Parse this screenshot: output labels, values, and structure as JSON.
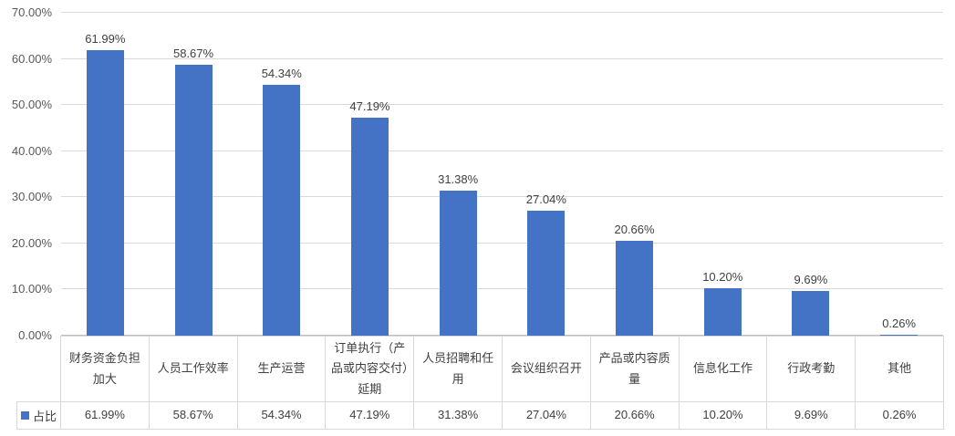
{
  "chart_data": {
    "type": "bar",
    "title": "",
    "categories": [
      "财务资金负担加大",
      "人员工作效率",
      "生产运营",
      "订单执行（产品或内容交付）延期",
      "人员招聘和任用",
      "会议组织召开",
      "产品或内容质量",
      "信息化工作",
      "行政考勤",
      "其他"
    ],
    "series": [
      {
        "name": "占比",
        "values": [
          61.99,
          58.67,
          54.34,
          47.19,
          31.38,
          27.04,
          20.66,
          10.2,
          9.69,
          0.26
        ],
        "value_labels": [
          "61.99%",
          "58.67%",
          "54.34%",
          "47.19%",
          "31.38%",
          "27.04%",
          "20.66%",
          "10.20%",
          "9.69%",
          "0.26%"
        ]
      }
    ],
    "y_axis": {
      "min": 0,
      "max": 70,
      "step": 10,
      "tick_labels": [
        "0.00%",
        "10.00%",
        "20.00%",
        "30.00%",
        "40.00%",
        "50.00%",
        "60.00%",
        "70.00%"
      ]
    },
    "grid": true,
    "legend": {
      "label": "占比",
      "position": "data-table-left"
    },
    "data_table_shown": true,
    "colors": {
      "bar": "#4472C4",
      "gridline": "#D9D9D9",
      "axis_line": "#BFBFBF",
      "label_text": "#404040",
      "axis_text": "#595959",
      "table_border": "#D9D9D9"
    }
  }
}
